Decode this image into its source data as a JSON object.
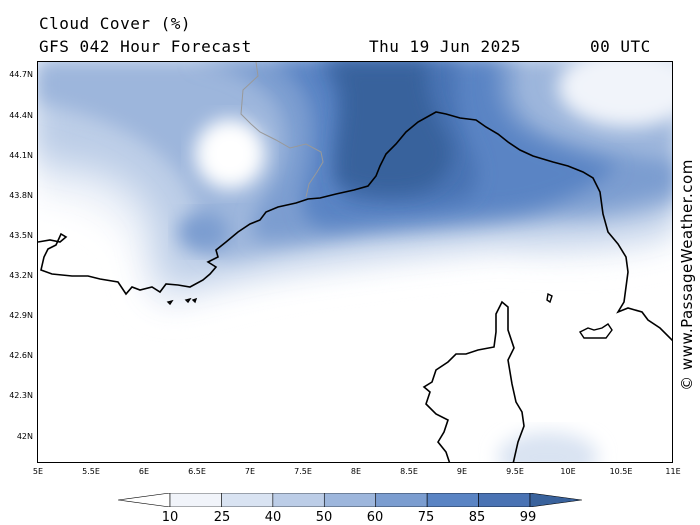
{
  "header": {
    "title": "Cloud Cover (%)",
    "subtitle": "GFS 042 Hour Forecast",
    "date": "Thu 19 Jun 2025",
    "time": "00 UTC"
  },
  "map": {
    "lat_labels": [
      "44.7N",
      "44.4N",
      "44.1N",
      "43.8N",
      "43.5N",
      "43.2N",
      "42.9N",
      "42.6N",
      "42.3N",
      "42N"
    ],
    "lon_labels": [
      "5E",
      "5.5E",
      "6E",
      "6.5E",
      "7E",
      "7.5E",
      "8E",
      "8.5E",
      "9E",
      "9.5E",
      "10E",
      "10.5E",
      "11E"
    ]
  },
  "legend": {
    "levels": [
      "10",
      "25",
      "40",
      "50",
      "60",
      "75",
      "85",
      "99"
    ],
    "colors": [
      "#ffffff",
      "#f1f4fa",
      "#d9e3f2",
      "#bccde7",
      "#9db6dc",
      "#7b9dd0",
      "#5a84c4",
      "#4a73b4",
      "#39629c"
    ]
  },
  "watermark": "© www.PassageWeather.com"
}
